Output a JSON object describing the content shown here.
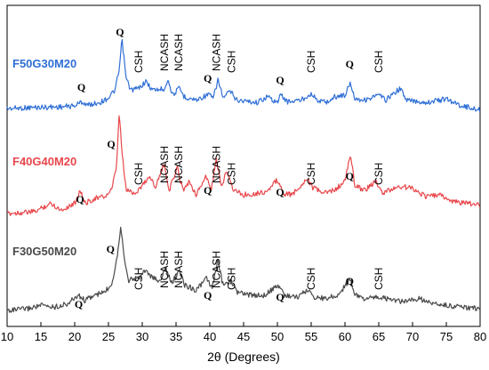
{
  "chart_data": {
    "type": "line",
    "xlabel": "2θ (Degrees)",
    "ylabel": "",
    "xlim": [
      10,
      80
    ],
    "xticks": [
      "10",
      "15",
      "20",
      "25",
      "30",
      "35",
      "40",
      "45",
      "50",
      "55",
      "60",
      "65",
      "70",
      "75",
      "80"
    ],
    "yticks_shown": false,
    "grid": false,
    "series": [
      {
        "name": "F50G30M20",
        "color": "#2f6fd6",
        "baseline": 0.12,
        "points": [
          [
            10,
            0
          ],
          [
            14,
            0.03
          ],
          [
            18,
            0.05
          ],
          [
            20,
            0.08
          ],
          [
            21,
            0.2
          ],
          [
            22,
            0.1
          ],
          [
            24,
            0.2
          ],
          [
            25,
            0.32
          ],
          [
            26,
            0.55
          ],
          [
            26.6,
            1.15
          ],
          [
            27,
            2.05
          ],
          [
            27.6,
            0.9
          ],
          [
            28.3,
            0.55
          ],
          [
            29.5,
            0.6
          ],
          [
            30.5,
            0.8
          ],
          [
            31.5,
            0.55
          ],
          [
            33.2,
            0.58
          ],
          [
            33.8,
            0.85
          ],
          [
            34.5,
            0.4
          ],
          [
            35.5,
            0.6
          ],
          [
            36.2,
            0.35
          ],
          [
            38,
            0.25
          ],
          [
            39.8,
            0.42
          ],
          [
            40.5,
            0.3
          ],
          [
            41.2,
            0.85
          ],
          [
            42,
            0.3
          ],
          [
            43,
            0.52
          ],
          [
            44,
            0.25
          ],
          [
            47,
            0.18
          ],
          [
            48.5,
            0.35
          ],
          [
            50,
            0.18
          ],
          [
            50.5,
            0.4
          ],
          [
            51.5,
            0.2
          ],
          [
            53.5,
            0.25
          ],
          [
            55,
            0.45
          ],
          [
            56,
            0.22
          ],
          [
            57.5,
            0.2
          ],
          [
            58.5,
            0.35
          ],
          [
            60,
            0.4
          ],
          [
            60.8,
            0.75
          ],
          [
            61.5,
            0.3
          ],
          [
            63,
            0.25
          ],
          [
            65,
            0.4
          ],
          [
            66,
            0.25
          ],
          [
            68.2,
            0.6
          ],
          [
            69,
            0.25
          ],
          [
            72,
            0.18
          ],
          [
            75,
            0.28
          ],
          [
            77,
            0.1
          ],
          [
            80,
            -0.05
          ]
        ],
        "peak_labels": [
          {
            "text": "Q",
            "x": 21
          },
          {
            "text": "Q",
            "x": 26.7
          },
          {
            "text": "CSH",
            "x": 29.5
          },
          {
            "text": "NCASH",
            "x": 33.3
          },
          {
            "text": "NCASH",
            "x": 35.4
          },
          {
            "text": "Q",
            "x": 39.7
          },
          {
            "text": "NCASH",
            "x": 41
          },
          {
            "text": "CSH",
            "x": 43.2
          },
          {
            "text": "Q",
            "x": 50.4
          },
          {
            "text": "CSH",
            "x": 55
          },
          {
            "text": "Q",
            "x": 60.7
          },
          {
            "text": "CSH",
            "x": 65
          }
        ]
      },
      {
        "name": "F40G40M20",
        "color": "#e8474b",
        "baseline": 0.1,
        "points": [
          [
            10,
            0
          ],
          [
            14,
            0.05
          ],
          [
            16.5,
            0.3
          ],
          [
            18,
            0.1
          ],
          [
            20,
            0.3
          ],
          [
            20.8,
            0.7
          ],
          [
            21.5,
            0.3
          ],
          [
            23,
            0.45
          ],
          [
            24.5,
            0.5
          ],
          [
            25.5,
            0.7
          ],
          [
            26.2,
            1.4
          ],
          [
            26.6,
            3.0
          ],
          [
            27,
            1.8
          ],
          [
            27.6,
            0.7
          ],
          [
            29,
            0.6
          ],
          [
            30.3,
            0.9
          ],
          [
            31,
            1.1
          ],
          [
            32,
            0.8
          ],
          [
            33.2,
            1.45
          ],
          [
            34,
            0.7
          ],
          [
            35.2,
            1.35
          ],
          [
            36,
            0.7
          ],
          [
            37,
            0.95
          ],
          [
            38,
            0.55
          ],
          [
            39.4,
            1.1
          ],
          [
            40.2,
            0.7
          ],
          [
            41,
            1.6
          ],
          [
            41.7,
            0.75
          ],
          [
            42.5,
            1.3
          ],
          [
            43.5,
            0.7
          ],
          [
            45,
            0.55
          ],
          [
            47,
            0.6
          ],
          [
            48.5,
            0.65
          ],
          [
            50,
            1.0
          ],
          [
            50.8,
            0.6
          ],
          [
            52,
            0.55
          ],
          [
            53,
            0.7
          ],
          [
            54.3,
            1.05
          ],
          [
            55.3,
            0.75
          ],
          [
            57,
            0.6
          ],
          [
            58.5,
            0.7
          ],
          [
            60,
            0.95
          ],
          [
            60.8,
            1.75
          ],
          [
            61.5,
            0.8
          ],
          [
            63,
            0.7
          ],
          [
            64.5,
            0.95
          ],
          [
            65.5,
            0.6
          ],
          [
            68,
            0.8
          ],
          [
            70,
            0.75
          ],
          [
            72,
            0.5
          ],
          [
            74,
            0.55
          ],
          [
            76,
            0.35
          ],
          [
            78,
            0.3
          ],
          [
            80,
            0.25
          ]
        ],
        "peak_labels": [
          {
            "text": "Q",
            "x": 20.8
          },
          {
            "text": "Q",
            "x": 25.4
          },
          {
            "text": "CSH",
            "x": 29.5
          },
          {
            "text": "NCASH",
            "x": 33.3
          },
          {
            "text": "NCASH",
            "x": 35.4
          },
          {
            "text": "Q",
            "x": 39.7
          },
          {
            "text": "NCASH",
            "x": 41
          },
          {
            "text": "CSH",
            "x": 43.2
          },
          {
            "text": "Q",
            "x": 50.4
          },
          {
            "text": "CSH",
            "x": 55
          },
          {
            "text": "Q",
            "x": 60.7
          },
          {
            "text": "CSH",
            "x": 65
          }
        ]
      },
      {
        "name": "F30G50M20",
        "color": "#4a4a4a",
        "baseline": 0.08,
        "points": [
          [
            10,
            0
          ],
          [
            13,
            0.05
          ],
          [
            15,
            0.15
          ],
          [
            17,
            0.1
          ],
          [
            19,
            0.2
          ],
          [
            20.5,
            0.45
          ],
          [
            21.5,
            0.3
          ],
          [
            23,
            0.45
          ],
          [
            24.5,
            0.55
          ],
          [
            25.5,
            0.8
          ],
          [
            26.3,
            1.6
          ],
          [
            26.8,
            2.5
          ],
          [
            27.4,
            1.5
          ],
          [
            28,
            0.9
          ],
          [
            29.5,
            0.95
          ],
          [
            30.5,
            1.2
          ],
          [
            31.3,
            1.0
          ],
          [
            32.5,
            0.85
          ],
          [
            33.5,
            1.25
          ],
          [
            34.3,
            0.8
          ],
          [
            35.5,
            1.15
          ],
          [
            36.3,
            0.75
          ],
          [
            38,
            0.6
          ],
          [
            39.5,
            0.95
          ],
          [
            40.3,
            0.65
          ],
          [
            41.2,
            1.45
          ],
          [
            42,
            0.7
          ],
          [
            43,
            0.9
          ],
          [
            44,
            0.55
          ],
          [
            46,
            0.45
          ],
          [
            48,
            0.45
          ],
          [
            50.3,
            0.75
          ],
          [
            51,
            0.45
          ],
          [
            53,
            0.4
          ],
          [
            54.5,
            0.6
          ],
          [
            55.5,
            0.4
          ],
          [
            57,
            0.35
          ],
          [
            59,
            0.45
          ],
          [
            60.8,
            0.95
          ],
          [
            61.5,
            0.45
          ],
          [
            63,
            0.35
          ],
          [
            65,
            0.4
          ],
          [
            67,
            0.3
          ],
          [
            69,
            0.25
          ],
          [
            71,
            0.35
          ],
          [
            73,
            0.2
          ],
          [
            75,
            0.15
          ],
          [
            77,
            0.1
          ],
          [
            80,
            0.05
          ]
        ],
        "peak_labels": [
          {
            "text": "Q",
            "x": 20.6
          },
          {
            "text": "Q",
            "x": 25.3
          },
          {
            "text": "CSH",
            "x": 29.5
          },
          {
            "text": "NCASH",
            "x": 33.3
          },
          {
            "text": "NCASH",
            "x": 35.4
          },
          {
            "text": "Q",
            "x": 39.7
          },
          {
            "text": "NCASH",
            "x": 41
          },
          {
            "text": "CSH",
            "x": 43.2
          },
          {
            "text": "Q",
            "x": 50.4
          },
          {
            "text": "CSH",
            "x": 55
          },
          {
            "text": "Q",
            "x": 60.7
          },
          {
            "text": "CSH",
            "x": 65
          }
        ]
      }
    ]
  }
}
